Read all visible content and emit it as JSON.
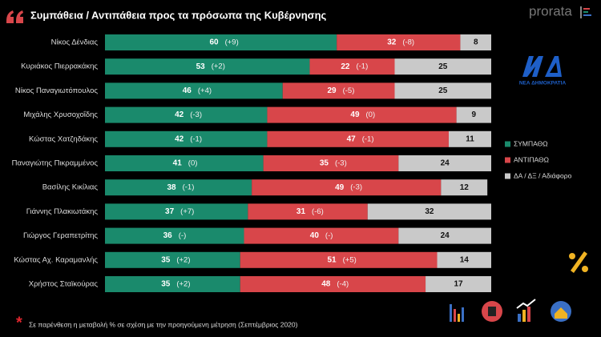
{
  "chart_data": {
    "type": "stacked-bar-horizontal",
    "title": "Συμπάθεια / Αντιπάθεια προς τα πρόσωπα της Κυβέρνησης",
    "brand": "prorata",
    "party_logo_text": "ΝΕΑ ΔΗΜΟΚΡΑΤΙΑ",
    "footnote_mark": "*",
    "footnote": "Σε παρένθεση η μεταβολή % σε σχέση με την προηγούμενη μέτρηση (Σεπτέμβριος 2020)",
    "categories": [
      "Νίκος Δένδιας",
      "Κυριάκος Πιερρακάκης",
      "Νίκος Παναγιωτόπουλος",
      "Μιχάλης Χρυσοχοΐδης",
      "Κώστας Χατζηδάκης",
      "Παναγιώτης Πικραμμένος",
      "Βασίλης Κικίλιας",
      "Γιάννης Πλακιωτάκης",
      "Γιώργος Γεραπετρίτης",
      "Κώστας Αχ. Καραμανλής",
      "Χρήστος Σταϊκούρας"
    ],
    "series": [
      {
        "name": "ΣΥΜΠΑΘΩ",
        "color": "#1a8a6c",
        "values": [
          60,
          53,
          46,
          42,
          42,
          41,
          38,
          37,
          36,
          35,
          35
        ],
        "changes": [
          "(+9)",
          "(+2)",
          "(+4)",
          "(-3)",
          "(-1)",
          "(0)",
          "(-1)",
          "(+7)",
          "(-)",
          "(+2)",
          "(+2)"
        ]
      },
      {
        "name": "ΑΝΤΙΠΑΘΩ",
        "color": "#d8464a",
        "values": [
          32,
          22,
          29,
          49,
          47,
          35,
          49,
          31,
          40,
          51,
          48
        ],
        "changes": [
          "(-8)",
          "(-1)",
          "(-5)",
          "(0)",
          "(-1)",
          "(-3)",
          "(-3)",
          "(-6)",
          "(-)",
          "(+5)",
          "(-4)"
        ]
      },
      {
        "name": "ΔΑ / ΔΞ / Αδιάφορο",
        "color": "#c9c9c9",
        "values": [
          8,
          25,
          25,
          9,
          11,
          24,
          12,
          32,
          24,
          14,
          17
        ]
      }
    ]
  }
}
